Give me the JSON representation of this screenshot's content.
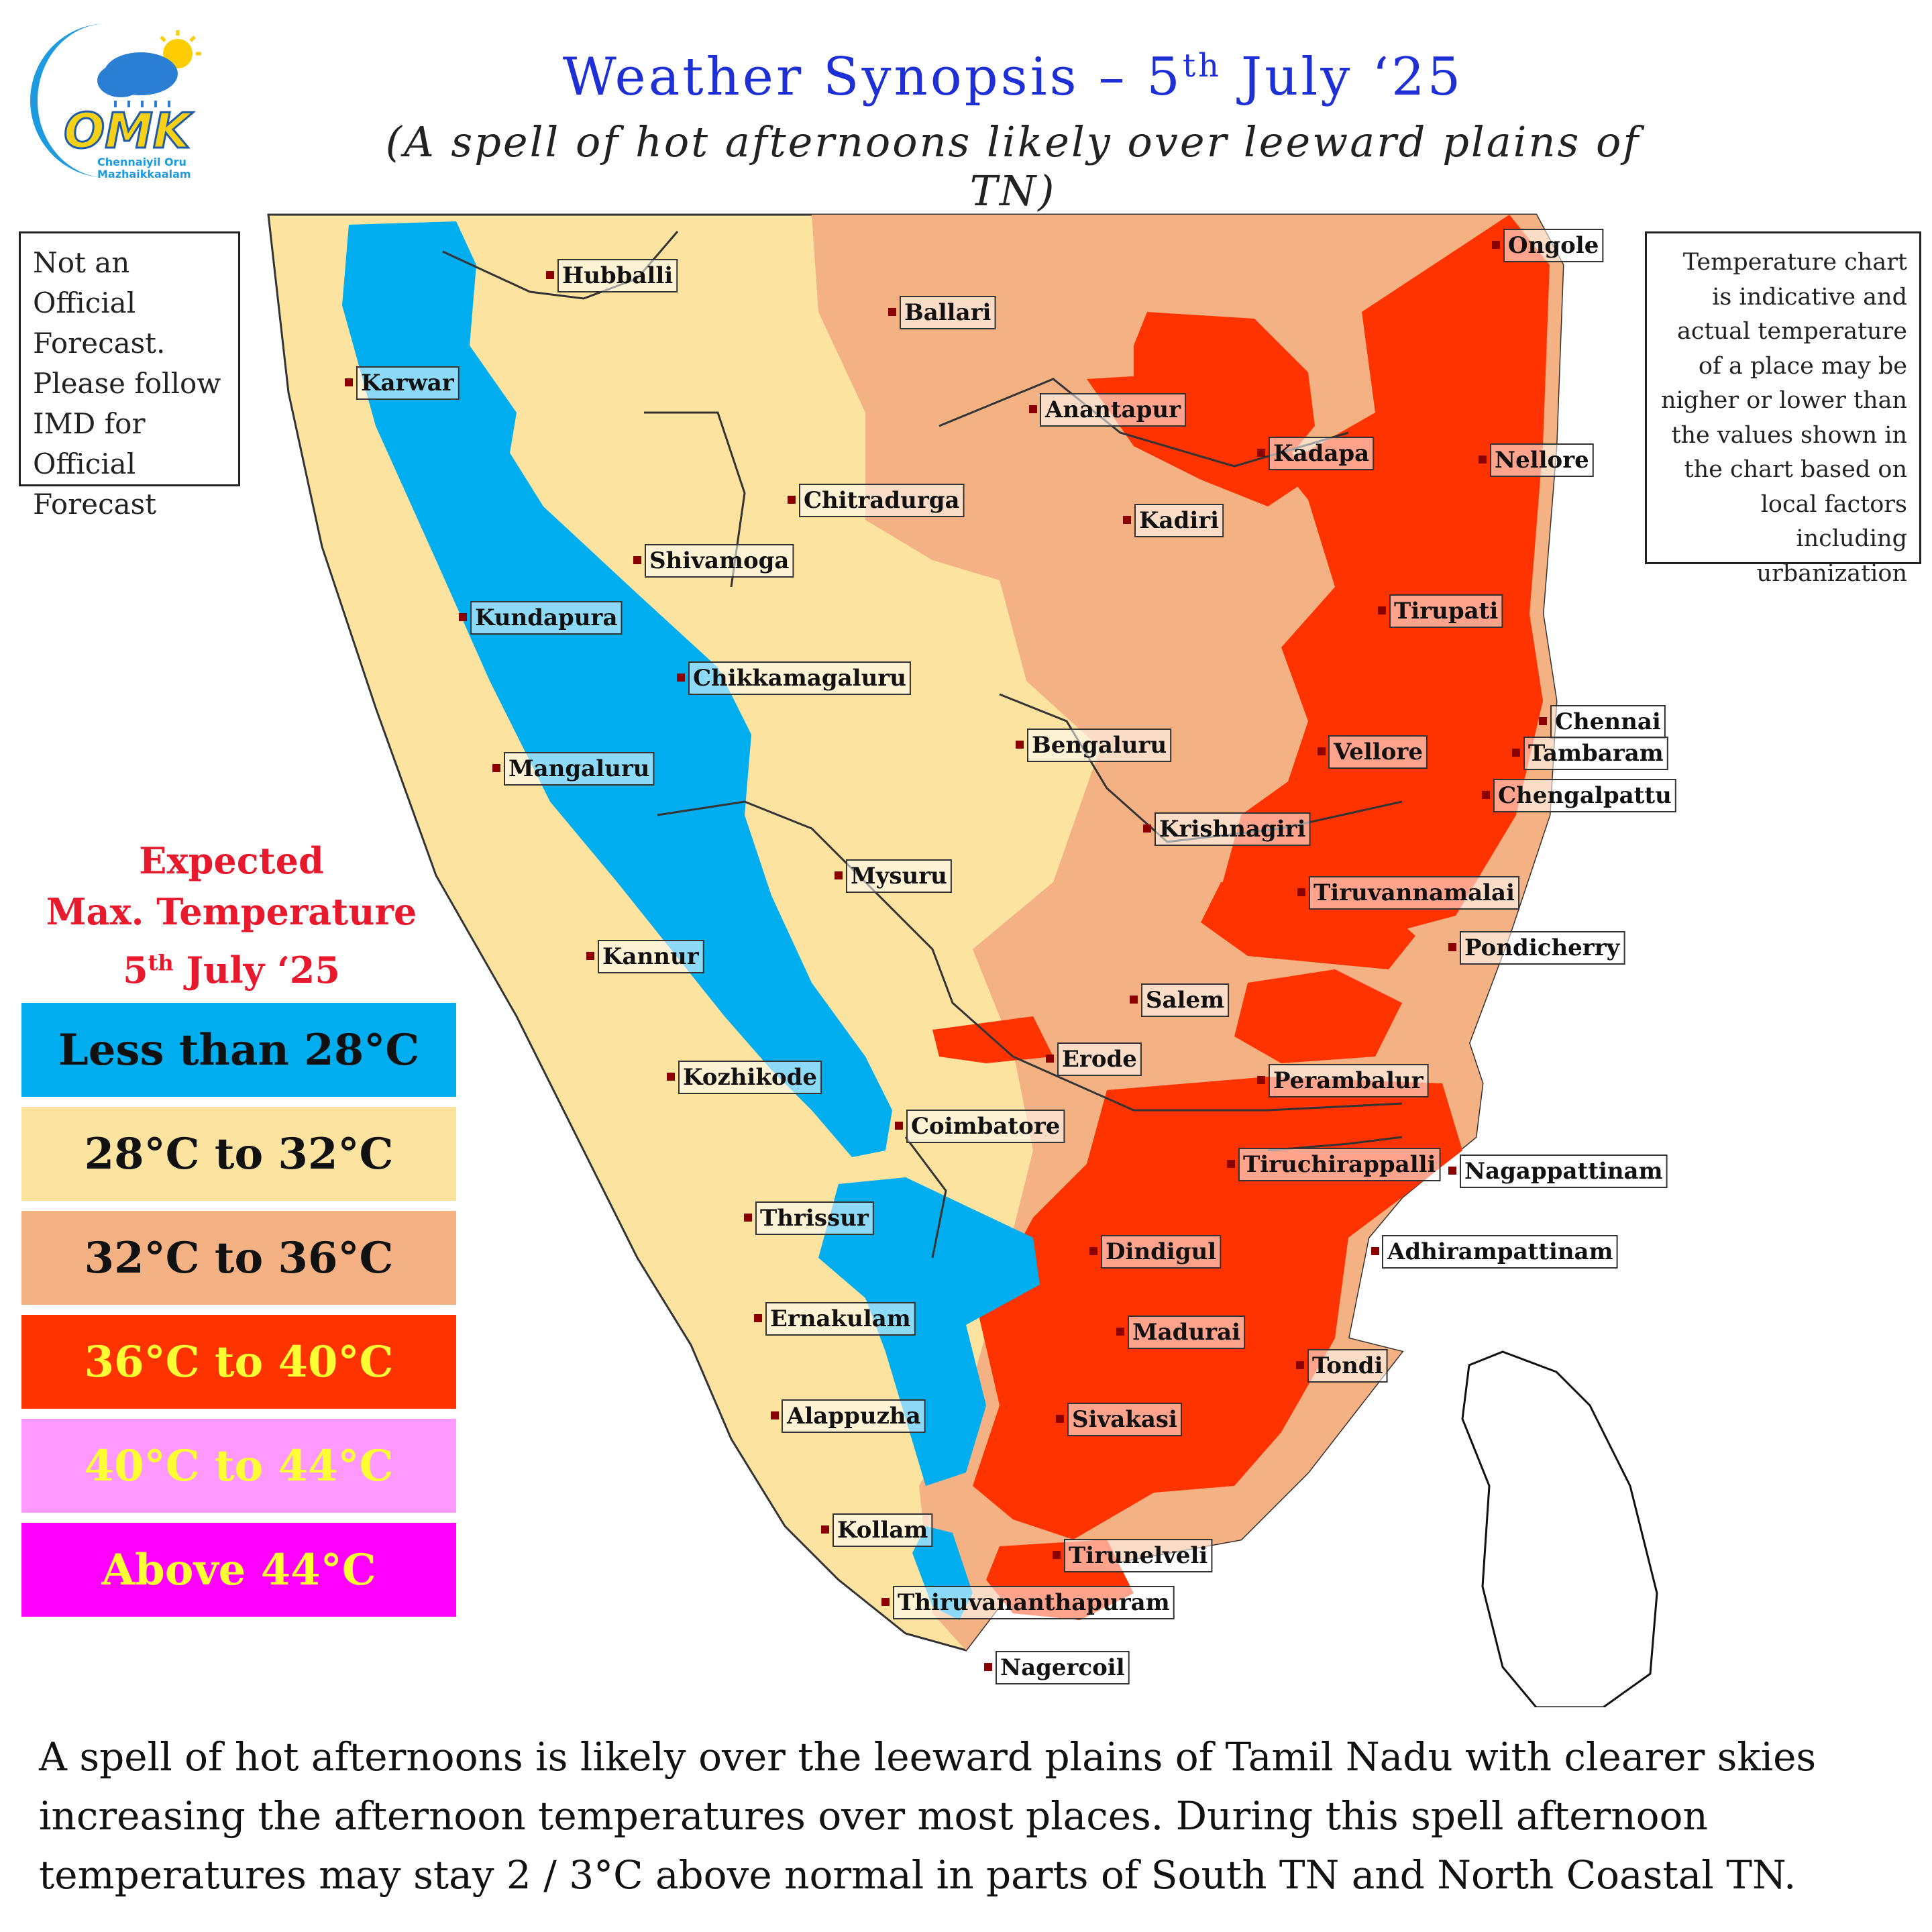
{
  "logo": {
    "letters": "OMK",
    "tagline_line1": "Chennaiyil Oru",
    "tagline_line2": "Mazhaikkaalam"
  },
  "header": {
    "title_prefix": "Weather Synopsis – 5",
    "title_sup": "th",
    "title_suffix": " July ‘25",
    "subtitle": "(A spell of  hot afternoons likely over leeward plains of  TN)"
  },
  "disclaimer_left": "Not an Official Forecast. Please follow IMD for Official Forecast",
  "disclaimer_right": "Temperature chart is indicative and actual temperature of a place may be nigher or lower than the values shown in the chart based on local factors including urbanization",
  "legend": {
    "title_line1": "Expected",
    "title_line2": "Max. Temperature",
    "date_prefix": "5",
    "date_sup": "th",
    "date_suffix": " July ‘25",
    "items": [
      {
        "label": "Less than 28°C",
        "color": "#00aeef",
        "text_color": "#111111"
      },
      {
        "label": "28°C to 32°C",
        "color": "#fde3a0",
        "text_color": "#111111"
      },
      {
        "label": "32°C to 36°C",
        "color": "#f4b183",
        "text_color": "#111111"
      },
      {
        "label": "36°C to 40°C",
        "color": "#ff3300",
        "text_color": "#ffff33"
      },
      {
        "label": "40°C to 44°C",
        "color": "#ff99ff",
        "text_color": "#ffff33"
      },
      {
        "label": "Above 44°C",
        "color": "#ff00ff",
        "text_color": "#ffff33"
      }
    ]
  },
  "map": {
    "cities": [
      {
        "name": "Hubballi"
      },
      {
        "name": "Ballari"
      },
      {
        "name": "Ongole"
      },
      {
        "name": "Karwar"
      },
      {
        "name": "Anantapur"
      },
      {
        "name": "Kadapa"
      },
      {
        "name": "Nellore"
      },
      {
        "name": "Chitradurga"
      },
      {
        "name": "Kadiri"
      },
      {
        "name": "Shivamoga"
      },
      {
        "name": "Kundapura"
      },
      {
        "name": "Tirupati"
      },
      {
        "name": "Chikkamagaluru"
      },
      {
        "name": "Chennai"
      },
      {
        "name": "Bengaluru"
      },
      {
        "name": "Vellore"
      },
      {
        "name": "Tambaram"
      },
      {
        "name": "Mangaluru"
      },
      {
        "name": "Chengalpattu"
      },
      {
        "name": "Krishnagiri"
      },
      {
        "name": "Mysuru"
      },
      {
        "name": "Tiruvannamalai"
      },
      {
        "name": "Kannur"
      },
      {
        "name": "Pondicherry"
      },
      {
        "name": "Salem"
      },
      {
        "name": "Erode"
      },
      {
        "name": "Kozhikode"
      },
      {
        "name": "Perambalur"
      },
      {
        "name": "Coimbatore"
      },
      {
        "name": "Tiruchirappalli"
      },
      {
        "name": "Nagappattinam"
      },
      {
        "name": "Thrissur"
      },
      {
        "name": "Dindigul"
      },
      {
        "name": "Adhirampattinam"
      },
      {
        "name": "Ernakulam"
      },
      {
        "name": "Madurai"
      },
      {
        "name": "Tondi"
      },
      {
        "name": "Alappuzha"
      },
      {
        "name": "Sivakasi"
      },
      {
        "name": "Kollam"
      },
      {
        "name": "Tirunelveli"
      },
      {
        "name": "Thiruvananthapuram"
      },
      {
        "name": "Nagercoil"
      }
    ]
  },
  "bottom_text": "A spell of  hot afternoons is likely over the leeward plains of  Tamil Nadu with clearer skies increasing the afternoon temperatures over most places. During this spell afternoon temperatures may stay 2 / 3°C above normal in parts of South TN and North Coastal TN."
}
